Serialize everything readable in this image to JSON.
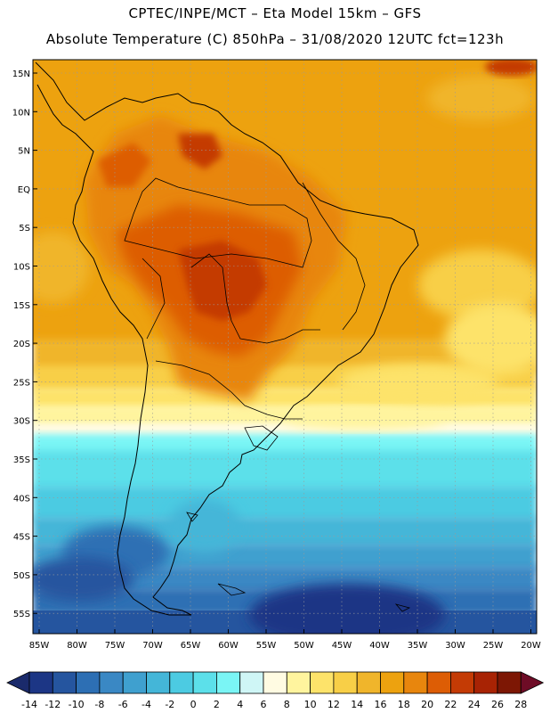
{
  "title_line1": "CPTEC/INPE/MCT –  Eta Model 15km – GFS",
  "title_line2": "Absolute Temperature (C) 850hPa – 31/08/2020 12UTC fct=123h",
  "lat_labels": [
    "15N",
    "10N",
    "5N",
    "EQ",
    "5S",
    "10S",
    "15S",
    "20S",
    "25S",
    "30S",
    "35S",
    "40S",
    "45S",
    "50S",
    "55S"
  ],
  "lon_labels": [
    "85W",
    "80W",
    "75W",
    "70W",
    "65W",
    "60W",
    "55W",
    "50W",
    "45W",
    "40W",
    "35W",
    "30W",
    "25W",
    "20W"
  ],
  "colorbar": {
    "labels": [
      "-14",
      "-12",
      "-10",
      "-8",
      "-6",
      "-4",
      "-2",
      "0",
      "2",
      "4",
      "6",
      "8",
      "10",
      "12",
      "14",
      "16",
      "18",
      "20",
      "22",
      "24",
      "26",
      "28"
    ],
    "colors": [
      "#1c3685",
      "#25559f",
      "#2d6fb4",
      "#3a88c4",
      "#3fa0cf",
      "#44b6d8",
      "#4ccbe2",
      "#5ce0ea",
      "#7af5f5",
      "#cff6f6",
      "#fffbe2",
      "#fff49e",
      "#fde36a",
      "#f8cf47",
      "#f0b52b",
      "#eda20f",
      "#e8860d",
      "#dd5d05",
      "#c43b05",
      "#a82304",
      "#7d1704"
    ],
    "under_color": "#1a2a6b",
    "over_color": "#6e0c26"
  }
}
